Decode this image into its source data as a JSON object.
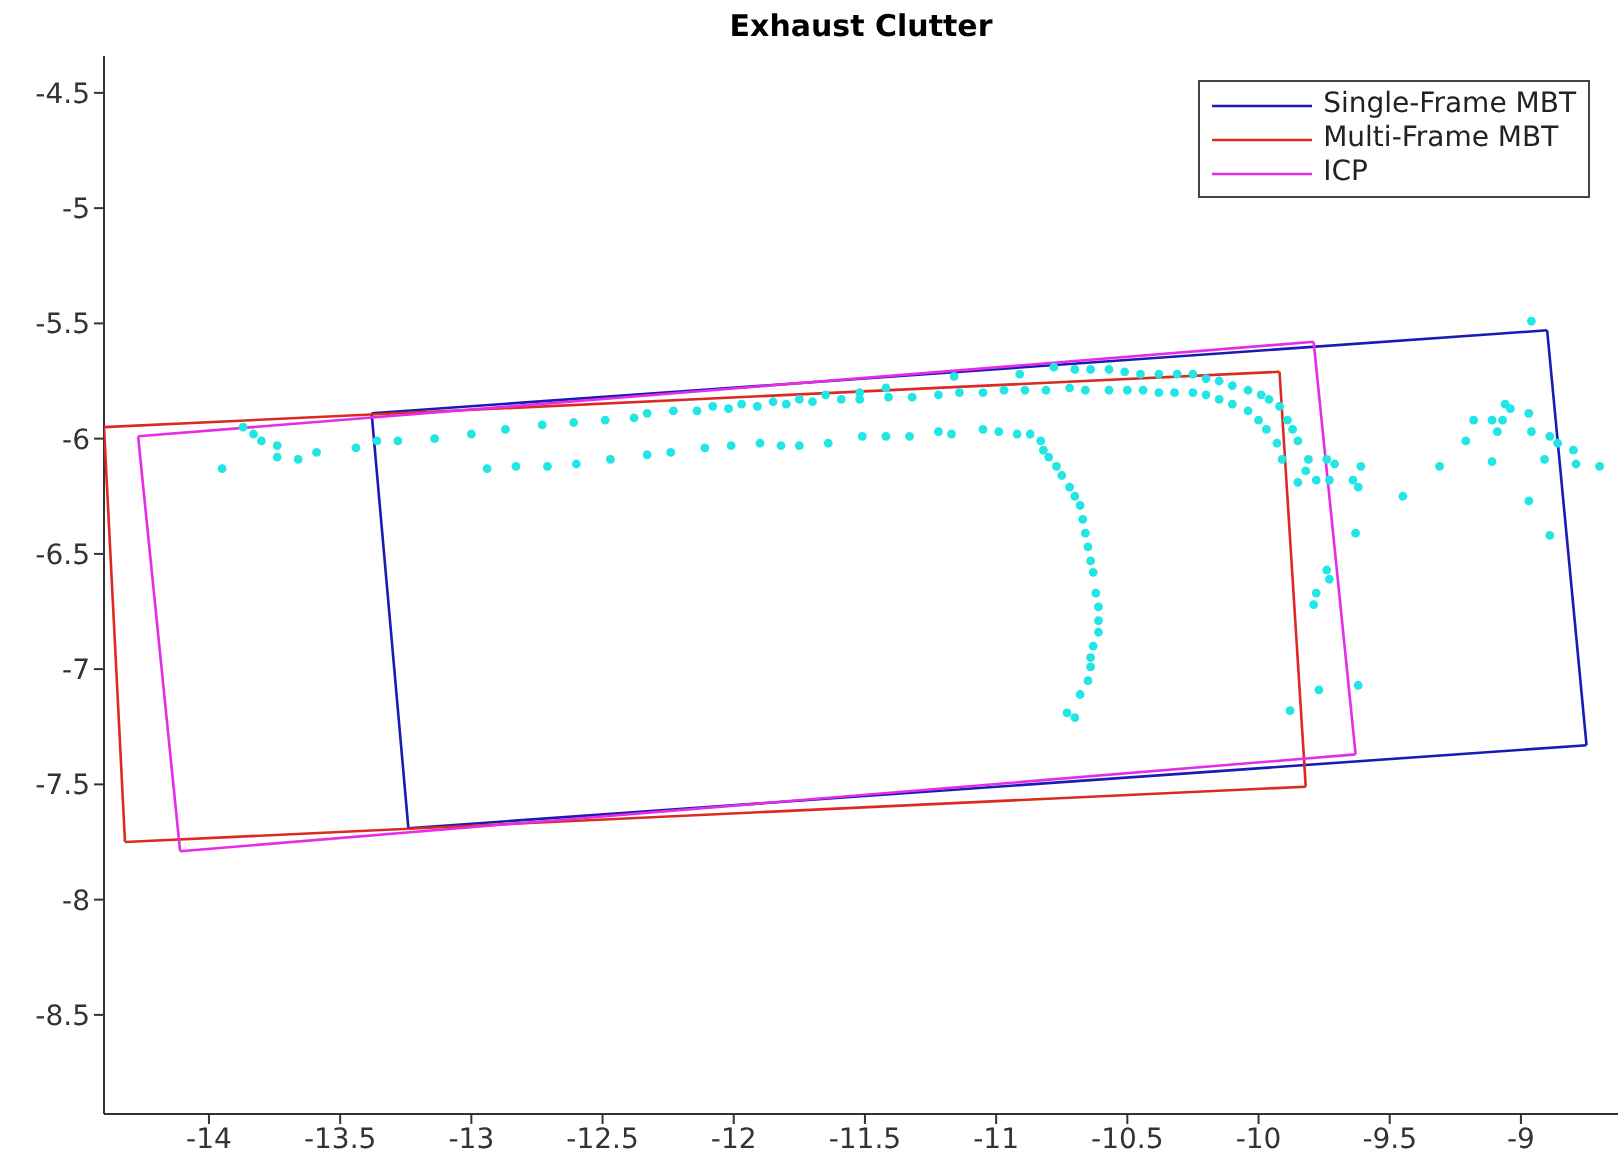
{
  "chart_data": {
    "type": "scatter",
    "title": "Exhaust Clutter",
    "xlim": [
      -14.4,
      -8.63
    ],
    "ylim": [
      -8.93,
      -4.34
    ],
    "xticks": [
      -14,
      -13.5,
      -13,
      -12.5,
      -12,
      -11.5,
      -11,
      -10.5,
      -10,
      -9.5,
      -9
    ],
    "yticks": [
      -8.5,
      -8,
      -7.5,
      -7,
      -6.5,
      -6,
      -5.5,
      -5,
      -4.5
    ],
    "grid": false,
    "legend": "top right",
    "series": [
      {
        "type": "line",
        "name": "Single-Frame MBT",
        "color": "#1a1ab4",
        "marker": "none",
        "line_style": "solid",
        "x": [
          -13.38,
          -8.9
        ],
        "values": [
          -5.89,
          -5.53
        ]
      },
      {
        "type": "line",
        "color": "#1a1ab4",
        "marker": "none",
        "line_style": "solid",
        "x": [
          -8.9,
          -8.75
        ],
        "values": [
          -5.53,
          -7.33
        ]
      },
      {
        "type": "line",
        "color": "#1a1ab4",
        "marker": "none",
        "line_style": "solid",
        "x": [
          -13.24,
          -8.75
        ],
        "values": [
          -7.69,
          -7.33
        ]
      },
      {
        "type": "line",
        "color": "#1a1ab4",
        "marker": "none",
        "line_style": "solid",
        "x": [
          -13.38,
          -13.24
        ],
        "values": [
          -5.89,
          -7.69
        ]
      },
      {
        "type": "line",
        "name": "Multi-Frame MBT",
        "color": "#dc2a22",
        "marker": "none",
        "line_style": "solid",
        "x": [
          -14.4,
          -9.92
        ],
        "values": [
          -5.95,
          -5.71
        ]
      },
      {
        "type": "line",
        "color": "#dc2a22",
        "marker": "none",
        "line_style": "solid",
        "x": [
          -9.92,
          -9.82
        ],
        "values": [
          -5.71,
          -7.51
        ]
      },
      {
        "type": "line",
        "color": "#dc2a22",
        "marker": "none",
        "line_style": "solid",
        "x": [
          -14.32,
          -9.82
        ],
        "values": [
          -7.75,
          -7.51
        ]
      },
      {
        "type": "line",
        "color": "#dc2a22",
        "marker": "none",
        "line_style": "solid",
        "x": [
          -14.4,
          -14.32
        ],
        "values": [
          -5.95,
          -7.75
        ]
      },
      {
        "type": "line",
        "name": "ICP",
        "color": "#e62ce6",
        "marker": "none",
        "line_style": "solid",
        "x": [
          -14.27,
          -9.79
        ],
        "values": [
          -5.99,
          -5.58
        ]
      },
      {
        "type": "line",
        "color": "#e62ce6",
        "marker": "none",
        "line_style": "solid",
        "x": [
          -9.79,
          -9.63
        ],
        "values": [
          -5.58,
          -7.37
        ]
      },
      {
        "type": "line",
        "color": "#e62ce6",
        "marker": "none",
        "line_style": "solid",
        "x": [
          -14.11,
          -9.63
        ],
        "values": [
          -7.79,
          -7.37
        ]
      },
      {
        "type": "line",
        "color": "#e62ce6",
        "marker": "none",
        "line_style": "solid",
        "x": [
          -14.27,
          -14.11
        ],
        "values": [
          -5.99,
          -7.79
        ]
      },
      {
        "color": "#22e6e6",
        "marker": "circle",
        "x": [
          -13.95,
          -13.87,
          -13.83,
          -13.8,
          -13.74,
          -13.74,
          -13.66,
          -13.59,
          -13.44,
          -13.36,
          -13.28,
          -13.14,
          -13.0,
          -12.87,
          -12.73,
          -12.61,
          -12.49,
          -12.38,
          -12.33,
          -12.23,
          -12.14,
          -12.08,
          -12.02,
          -11.97,
          -11.91,
          -11.85,
          -11.8,
          -11.75,
          -11.7,
          -11.65,
          -11.59,
          -11.52,
          -11.52,
          -11.42,
          -11.41,
          -11.32,
          -12.94,
          -12.83,
          -12.71,
          -12.6,
          -12.47,
          -12.33,
          -12.24,
          -12.11,
          -12.01,
          -11.9,
          -11.82,
          -11.75,
          -11.64,
          -11.51,
          -11.42,
          -11.33,
          -11.16,
          -10.91,
          -10.78,
          -10.7,
          -10.64,
          -10.57,
          -10.51,
          -10.45,
          -10.38,
          -10.31,
          -10.25,
          -10.2,
          -10.15,
          -10.1,
          -10.04,
          -9.99,
          -9.96,
          -9.92,
          -9.89,
          -9.87,
          -9.85,
          -9.81,
          -11.22,
          -11.14,
          -11.05,
          -10.97,
          -10.89,
          -10.81,
          -10.72,
          -10.66,
          -10.57,
          -10.5,
          -10.44,
          -10.38,
          -10.32,
          -10.25,
          -10.2,
          -10.15,
          -10.1,
          -10.04,
          -10.0,
          -9.97,
          -9.93,
          -9.91,
          -9.85,
          -9.78,
          -9.82,
          -9.74,
          -9.71,
          -9.61,
          -9.64,
          -9.62,
          -9.73,
          -9.63,
          -9.45,
          -9.31,
          -9.21,
          -9.18,
          -9.11,
          -9.06,
          -9.04,
          -9.09,
          -9.07,
          -9.11,
          -8.97,
          -8.96,
          -8.96,
          -8.91,
          -8.89,
          -8.86,
          -8.8,
          -8.79,
          -8.7,
          -8.97,
          -8.89,
          -11.22,
          -11.17,
          -11.05,
          -10.99,
          -10.92,
          -10.87,
          -10.83,
          -10.82,
          -10.8,
          -10.77,
          -10.75,
          -10.72,
          -10.7,
          -10.68,
          -10.67,
          -10.66,
          -10.65,
          -10.64,
          -10.63,
          -10.62,
          -10.61,
          -10.61,
          -10.61,
          -10.63,
          -10.64,
          -10.64,
          -10.65,
          -10.68,
          -10.73,
          -10.7,
          -9.74,
          -9.73,
          -9.78,
          -9.79,
          -9.77,
          -9.62,
          -9.88
        ],
        "values": [
          -6.13,
          -5.95,
          -5.98,
          -6.01,
          -6.03,
          -6.08,
          -6.09,
          -6.06,
          -6.04,
          -6.01,
          -6.01,
          -6.0,
          -5.98,
          -5.96,
          -5.94,
          -5.93,
          -5.92,
          -5.91,
          -5.89,
          -5.88,
          -5.88,
          -5.86,
          -5.87,
          -5.85,
          -5.86,
          -5.84,
          -5.85,
          -5.83,
          -5.84,
          -5.81,
          -5.83,
          -5.8,
          -5.83,
          -5.78,
          -5.82,
          -5.82,
          -6.13,
          -6.12,
          -6.12,
          -6.11,
          -6.09,
          -6.07,
          -6.06,
          -6.04,
          -6.03,
          -6.02,
          -6.03,
          -6.03,
          -6.02,
          -5.99,
          -5.99,
          -5.99,
          -5.73,
          -5.72,
          -5.69,
          -5.7,
          -5.7,
          -5.7,
          -5.71,
          -5.72,
          -5.72,
          -5.72,
          -5.72,
          -5.74,
          -5.75,
          -5.77,
          -5.79,
          -5.81,
          -5.83,
          -5.86,
          -5.92,
          -5.96,
          -6.01,
          -6.09,
          -5.81,
          -5.8,
          -5.8,
          -5.79,
          -5.79,
          -5.79,
          -5.78,
          -5.79,
          -5.79,
          -5.79,
          -5.79,
          -5.8,
          -5.8,
          -5.8,
          -5.81,
          -5.83,
          -5.85,
          -5.88,
          -5.92,
          -5.96,
          -6.02,
          -6.09,
          -6.19,
          -6.18,
          -6.14,
          -6.09,
          -6.11,
          -6.12,
          -6.18,
          -6.21,
          -6.18,
          -6.41,
          -6.25,
          -6.12,
          -6.01,
          -5.92,
          -5.92,
          -5.85,
          -5.87,
          -5.97,
          -5.92,
          -6.1,
          -5.89,
          -5.97,
          -5.49,
          -6.09,
          -5.99,
          -6.02,
          -6.05,
          -6.11,
          -6.12,
          -6.27,
          -6.42,
          -5.97,
          -5.98,
          -5.96,
          -5.97,
          -5.98,
          -5.98,
          -6.01,
          -6.05,
          -6.08,
          -6.12,
          -6.16,
          -6.21,
          -6.25,
          -6.29,
          -6.35,
          -6.41,
          -6.47,
          -6.53,
          -6.58,
          -6.67,
          -6.73,
          -6.79,
          -6.84,
          -6.9,
          -6.95,
          -6.99,
          -7.05,
          -7.11,
          -7.19,
          -7.21,
          -6.57,
          -6.61,
          -6.67,
          -6.72,
          -7.09,
          -7.07,
          -7.18
        ]
      }
    ]
  }
}
